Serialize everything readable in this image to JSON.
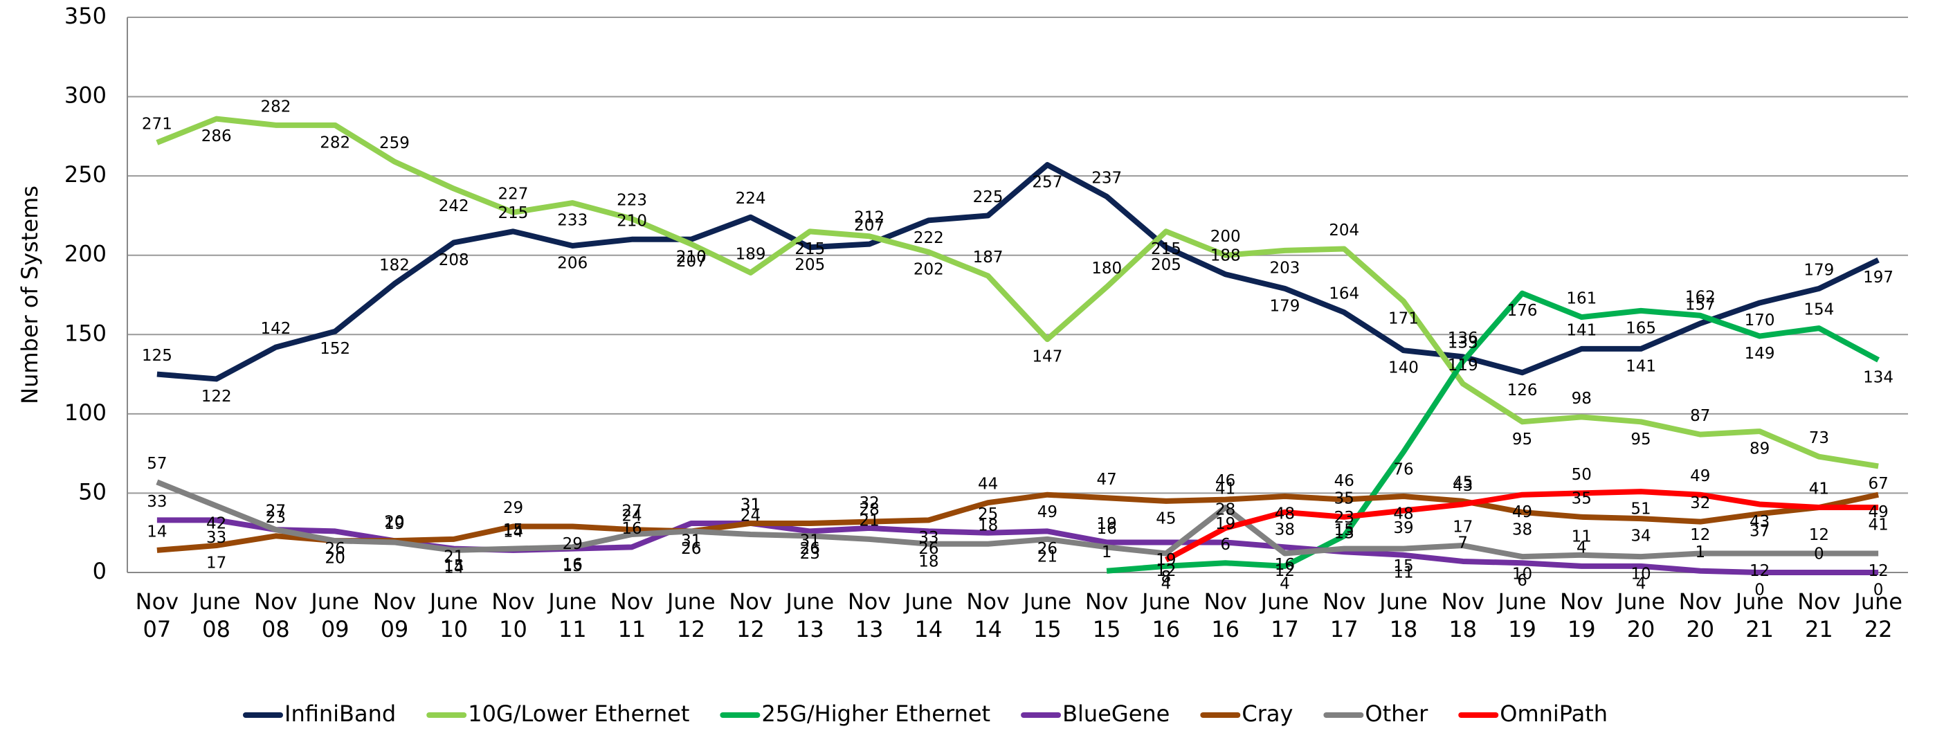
{
  "chart_data": {
    "type": "line",
    "y_label": "Number of Systems",
    "categories": [
      "Nov 07",
      "June 08",
      "Nov 08",
      "June 09",
      "Nov 09",
      "June 10",
      "Nov 10",
      "June 11",
      "Nov 11",
      "June 12",
      "Nov 12",
      "June 13",
      "Nov 13",
      "June 14",
      "Nov 14",
      "June 15",
      "Nov 15",
      "June 16",
      "Nov 16",
      "June 17",
      "Nov 17",
      "June 18",
      "Nov 18",
      "June 19",
      "Nov 19",
      "June 20",
      "Nov 20",
      "June 21",
      "Nov 21",
      "June 22"
    ],
    "ylim": [
      0,
      350
    ],
    "yticks": [
      0,
      50,
      100,
      150,
      200,
      250,
      300,
      350
    ],
    "grid": true,
    "legend": "bottom",
    "series": [
      {
        "name": "InfiniBand",
        "color": "#0d2352",
        "values": [
          125,
          122,
          142,
          152,
          182,
          208,
          215,
          206,
          210,
          210,
          224,
          205,
          207,
          222,
          225,
          257,
          237,
          205,
          188,
          179,
          164,
          140,
          136,
          126,
          141,
          141,
          157,
          170,
          179,
          197
        ]
      },
      {
        "name": "10G/Lower Ethernet",
        "color": "#92d050",
        "values": [
          271,
          286,
          282,
          282,
          259,
          242,
          227,
          233,
          223,
          207,
          189,
          215,
          212,
          202,
          187,
          147,
          180,
          215,
          200,
          203,
          204,
          171,
          119,
          95,
          98,
          95,
          87,
          89,
          73,
          67
        ]
      },
      {
        "name": "25G/Higher Ethernet",
        "color": "#00b050",
        "values": [
          null,
          null,
          null,
          null,
          null,
          null,
          null,
          null,
          null,
          null,
          null,
          null,
          null,
          null,
          null,
          null,
          1,
          4,
          6,
          4,
          23,
          76,
          133,
          176,
          161,
          165,
          162,
          149,
          154,
          134
        ]
      },
      {
        "name": "BlueGene",
        "color": "#7030a0",
        "values": [
          33,
          33,
          27,
          26,
          20,
          15,
          14,
          15,
          16,
          31,
          31,
          26,
          28,
          26,
          25,
          26,
          19,
          19,
          19,
          16,
          13,
          11,
          7,
          6,
          4,
          4,
          1,
          0,
          0,
          0
        ]
      },
      {
        "name": "Cray",
        "color": "#984807",
        "values": [
          14,
          17,
          23,
          20,
          20,
          21,
          29,
          29,
          27,
          26,
          31,
          31,
          32,
          33,
          44,
          49,
          47,
          45,
          46,
          48,
          46,
          48,
          45,
          38,
          35,
          34,
          32,
          37,
          41,
          49
        ]
      },
      {
        "name": "Other",
        "color": "#808080",
        "values": [
          57,
          42,
          27,
          20,
          19,
          14,
          15,
          16,
          24,
          26,
          24,
          23,
          21,
          18,
          18,
          21,
          16,
          12,
          41,
          12,
          15,
          15,
          17,
          10,
          11,
          10,
          12,
          12,
          12,
          12
        ]
      },
      {
        "name": "OmniPath",
        "color": "#ff0000",
        "values": [
          null,
          null,
          null,
          null,
          null,
          null,
          null,
          null,
          null,
          null,
          null,
          null,
          null,
          null,
          null,
          null,
          null,
          8,
          28,
          38,
          35,
          39,
          43,
          49,
          50,
          51,
          49,
          43,
          41,
          41
        ]
      }
    ]
  }
}
